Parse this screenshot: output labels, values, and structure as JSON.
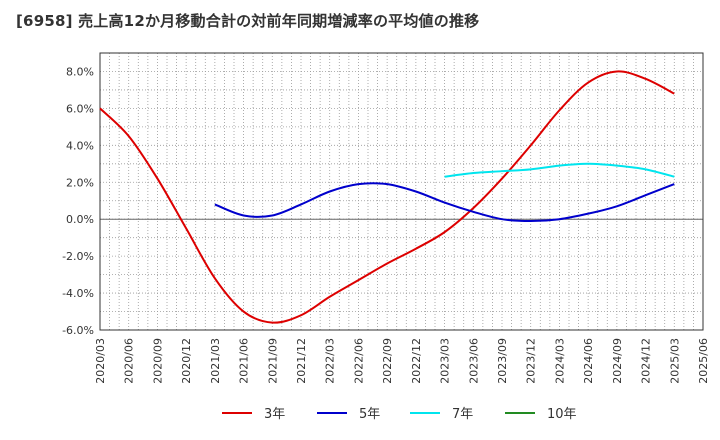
{
  "chart_data": {
    "type": "line",
    "title": "[6958]  売上高12か月移動合計の対前年同期増減率の平均値の推移",
    "xlabel": "",
    "ylabel": "",
    "ylim": [
      -0.06,
      0.09
    ],
    "yticks": [
      -0.06,
      -0.04,
      -0.02,
      0.0,
      0.02,
      0.04,
      0.06,
      0.08
    ],
    "ytick_labels": [
      "-6.0%",
      "-4.0%",
      "-2.0%",
      "0.0%",
      "2.0%",
      "4.0%",
      "6.0%",
      "8.0%"
    ],
    "x_ticks": [
      "2020/03",
      "2020/06",
      "2020/09",
      "2020/12",
      "2021/03",
      "2021/06",
      "2021/09",
      "2021/12",
      "2022/03",
      "2022/06",
      "2022/09",
      "2022/12",
      "2023/03",
      "2023/06",
      "2023/09",
      "2023/12",
      "2024/03",
      "2024/06",
      "2024/09",
      "2024/12",
      "2025/03",
      "2025/06"
    ],
    "grid": true,
    "legend_position": "bottom",
    "series": [
      {
        "name": "3年",
        "color": "#dd0000",
        "x": [
          "2020/03",
          "2020/06",
          "2020/09",
          "2020/12",
          "2021/03",
          "2021/06",
          "2021/09",
          "2021/12",
          "2022/03",
          "2022/06",
          "2022/09",
          "2022/12",
          "2023/03",
          "2023/06",
          "2023/09",
          "2023/12",
          "2024/03",
          "2024/06",
          "2024/09",
          "2024/12",
          "2025/03"
        ],
        "values": [
          0.06,
          0.045,
          0.022,
          -0.005,
          -0.032,
          -0.05,
          -0.056,
          -0.052,
          -0.042,
          -0.033,
          -0.024,
          -0.016,
          -0.007,
          0.006,
          0.022,
          0.04,
          0.059,
          0.074,
          0.08,
          0.076,
          0.068
        ]
      },
      {
        "name": "5年",
        "color": "#0000cc",
        "x": [
          "2021/03",
          "2021/06",
          "2021/09",
          "2021/12",
          "2022/03",
          "2022/06",
          "2022/09",
          "2022/12",
          "2023/03",
          "2023/06",
          "2023/09",
          "2023/12",
          "2024/03",
          "2024/06",
          "2024/09",
          "2024/12",
          "2025/03"
        ],
        "values": [
          0.008,
          0.002,
          0.002,
          0.008,
          0.015,
          0.019,
          0.019,
          0.015,
          0.009,
          0.004,
          0.0,
          -0.001,
          0.0,
          0.003,
          0.007,
          0.013,
          0.019
        ]
      },
      {
        "name": "7年",
        "color": "#00e5ee",
        "x": [
          "2023/03",
          "2023/06",
          "2023/09",
          "2023/12",
          "2024/03",
          "2024/06",
          "2024/09",
          "2024/12",
          "2025/03"
        ],
        "values": [
          0.023,
          0.025,
          0.026,
          0.027,
          0.029,
          0.03,
          0.029,
          0.027,
          0.023
        ]
      },
      {
        "name": "10年",
        "color": "#228b22",
        "x": [],
        "values": []
      }
    ]
  }
}
